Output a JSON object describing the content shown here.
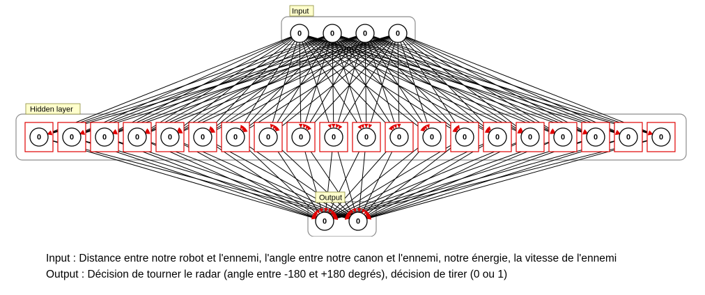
{
  "diagram": {
    "input_layer": {
      "label": "Input",
      "neuron_values": [
        "0",
        "0",
        "0",
        "0"
      ]
    },
    "hidden_layer": {
      "label": "Hidden layer",
      "neuron_values": [
        "0",
        "0",
        "0",
        "0",
        "0",
        "0",
        "0",
        "0",
        "0",
        "0",
        "0",
        "0",
        "0",
        "0",
        "0",
        "0",
        "0",
        "0",
        "0",
        "0"
      ]
    },
    "output_layer": {
      "label": "Output",
      "neuron_values": [
        "0",
        "0"
      ]
    },
    "colors": {
      "edge": "#000000",
      "frame": "#e00000",
      "box": "#8c8c8c",
      "tag": "#ffffcc"
    }
  },
  "captions": {
    "input": "Input : Distance entre notre robot et l'ennemi, l'angle entre notre canon et l'ennemi, notre énergie, la vitesse de l'ennemi",
    "output": "Output : Décision de tourner le radar (angle entre -180 et +180 degrés), décision de tirer (0 ou 1)"
  }
}
